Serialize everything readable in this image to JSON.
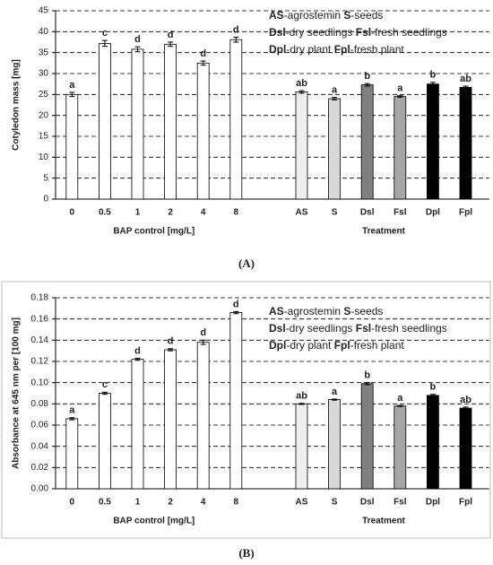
{
  "chart_data": [
    {
      "type": "bar",
      "caption": "(A)",
      "y_label": "Cotyledon mass [mg]",
      "ylim": [
        0,
        45
      ],
      "yticks": [
        0,
        5,
        10,
        15,
        20,
        25,
        30,
        35,
        40,
        45
      ],
      "grid": true,
      "legend": [
        [
          {
            "text": "AS",
            "bold": true
          },
          {
            "text": "-agrostemin ",
            "bold": false
          },
          {
            "text": "S",
            "bold": true
          },
          {
            "text": "-seeds",
            "bold": false
          }
        ],
        [
          {
            "text": "Dsl",
            "bold": true
          },
          {
            "text": "-dry seedlings ",
            "bold": false
          },
          {
            "text": "Fsl",
            "bold": true
          },
          {
            "text": "-fresh seedlings",
            "bold": false
          }
        ],
        [
          {
            "text": "Dpl",
            "bold": true
          },
          {
            "text": "-dry plant ",
            "bold": false
          },
          {
            "text": "Fpl",
            "bold": true
          },
          {
            "text": "-fresh plant",
            "bold": false
          }
        ]
      ],
      "groups": [
        {
          "label": "BAP control [mg/L]",
          "categories": [
            "0",
            "0.5",
            "1",
            "2",
            "4",
            "8"
          ],
          "values": [
            25,
            37.2,
            35.8,
            37,
            32.5,
            38.1
          ],
          "errors": [
            0.5,
            0.7,
            0.6,
            0.5,
            0.5,
            0.6
          ],
          "colors": [
            "#ffffff",
            "#ffffff",
            "#ffffff",
            "#ffffff",
            "#ffffff",
            "#ffffff"
          ],
          "letters": [
            "a",
            "c",
            "d",
            "d",
            "d",
            "d"
          ]
        },
        {
          "label": "Treatment",
          "categories": [
            "AS",
            "S",
            "Dsl",
            "Fsl",
            "Dpl",
            "Fpl"
          ],
          "values": [
            25.6,
            24,
            27.3,
            24.5,
            27.5,
            26.7
          ],
          "errors": [
            0.3,
            0.3,
            0.3,
            0.2,
            0.4,
            0.3
          ],
          "colors": [
            "#eeeeee",
            "#d9d9d9",
            "#808080",
            "#a6a6a6",
            "#000000",
            "#000000"
          ],
          "letters": [
            "ab",
            "a",
            "b",
            "a",
            "b",
            "ab"
          ]
        }
      ]
    },
    {
      "type": "bar",
      "caption": "(B)",
      "y_label": "Absorbance at 645 nm per [100 mg]",
      "ylim": [
        0,
        0.18
      ],
      "yticks": [
        {
          "value": 0,
          "label": "0.00"
        },
        {
          "value": 0.02,
          "label": "0.02"
        },
        {
          "value": 0.04,
          "label": "0.04"
        },
        {
          "value": 0.06,
          "label": "0.06"
        },
        {
          "value": 0.08,
          "label": "0.08"
        },
        {
          "value": 0.1,
          "label": "0.10"
        },
        {
          "value": 0.12,
          "label": "0.12"
        },
        {
          "value": 0.14,
          "label": "0.14"
        },
        {
          "value": 0.16,
          "label": "0.16"
        },
        {
          "value": 0.18,
          "label": "0.18"
        }
      ],
      "grid": true,
      "legend": [
        [
          {
            "text": "AS",
            "bold": true
          },
          {
            "text": "-agrostemin ",
            "bold": false
          },
          {
            "text": "S",
            "bold": true
          },
          {
            "text": "-seeds",
            "bold": false
          }
        ],
        [
          {
            "text": "Dsl",
            "bold": true
          },
          {
            "text": "-dry seedlings ",
            "bold": false
          },
          {
            "text": "Fsl",
            "bold": true
          },
          {
            "text": "-fresh seedlings",
            "bold": false
          }
        ],
        [
          {
            "text": "Dpl",
            "bold": true
          },
          {
            "text": "-dry plant ",
            "bold": false
          },
          {
            "text": "Fpl",
            "bold": true
          },
          {
            "text": "-fresh plant",
            "bold": false
          }
        ]
      ],
      "groups": [
        {
          "label": "BAP control [mg/L]",
          "categories": [
            "0",
            "0.5",
            "1",
            "2",
            "4",
            "8"
          ],
          "values": [
            0.066,
            0.09,
            0.122,
            0.131,
            0.138,
            0.166
          ],
          "errors": [
            0.001,
            0.001,
            0.001,
            0.001,
            0.002,
            0.001
          ],
          "colors": [
            "#ffffff",
            "#ffffff",
            "#ffffff",
            "#ffffff",
            "#ffffff",
            "#ffffff"
          ],
          "letters": [
            "a",
            "c",
            "d",
            "d",
            "d",
            "d"
          ]
        },
        {
          "label": "Treatment",
          "categories": [
            "AS",
            "S",
            "Dsl",
            "Fsl",
            "Dpl",
            "Fpl"
          ],
          "values": [
            0.08,
            0.084,
            0.099,
            0.078,
            0.088,
            0.076
          ],
          "errors": [
            0.0005,
            0.0005,
            0.001,
            0.0005,
            0.001,
            0.001
          ],
          "colors": [
            "#eeeeee",
            "#d9d9d9",
            "#808080",
            "#a6a6a6",
            "#000000",
            "#000000"
          ],
          "letters": [
            "ab",
            "a",
            "b",
            "a",
            "b",
            "ab"
          ]
        }
      ]
    }
  ]
}
